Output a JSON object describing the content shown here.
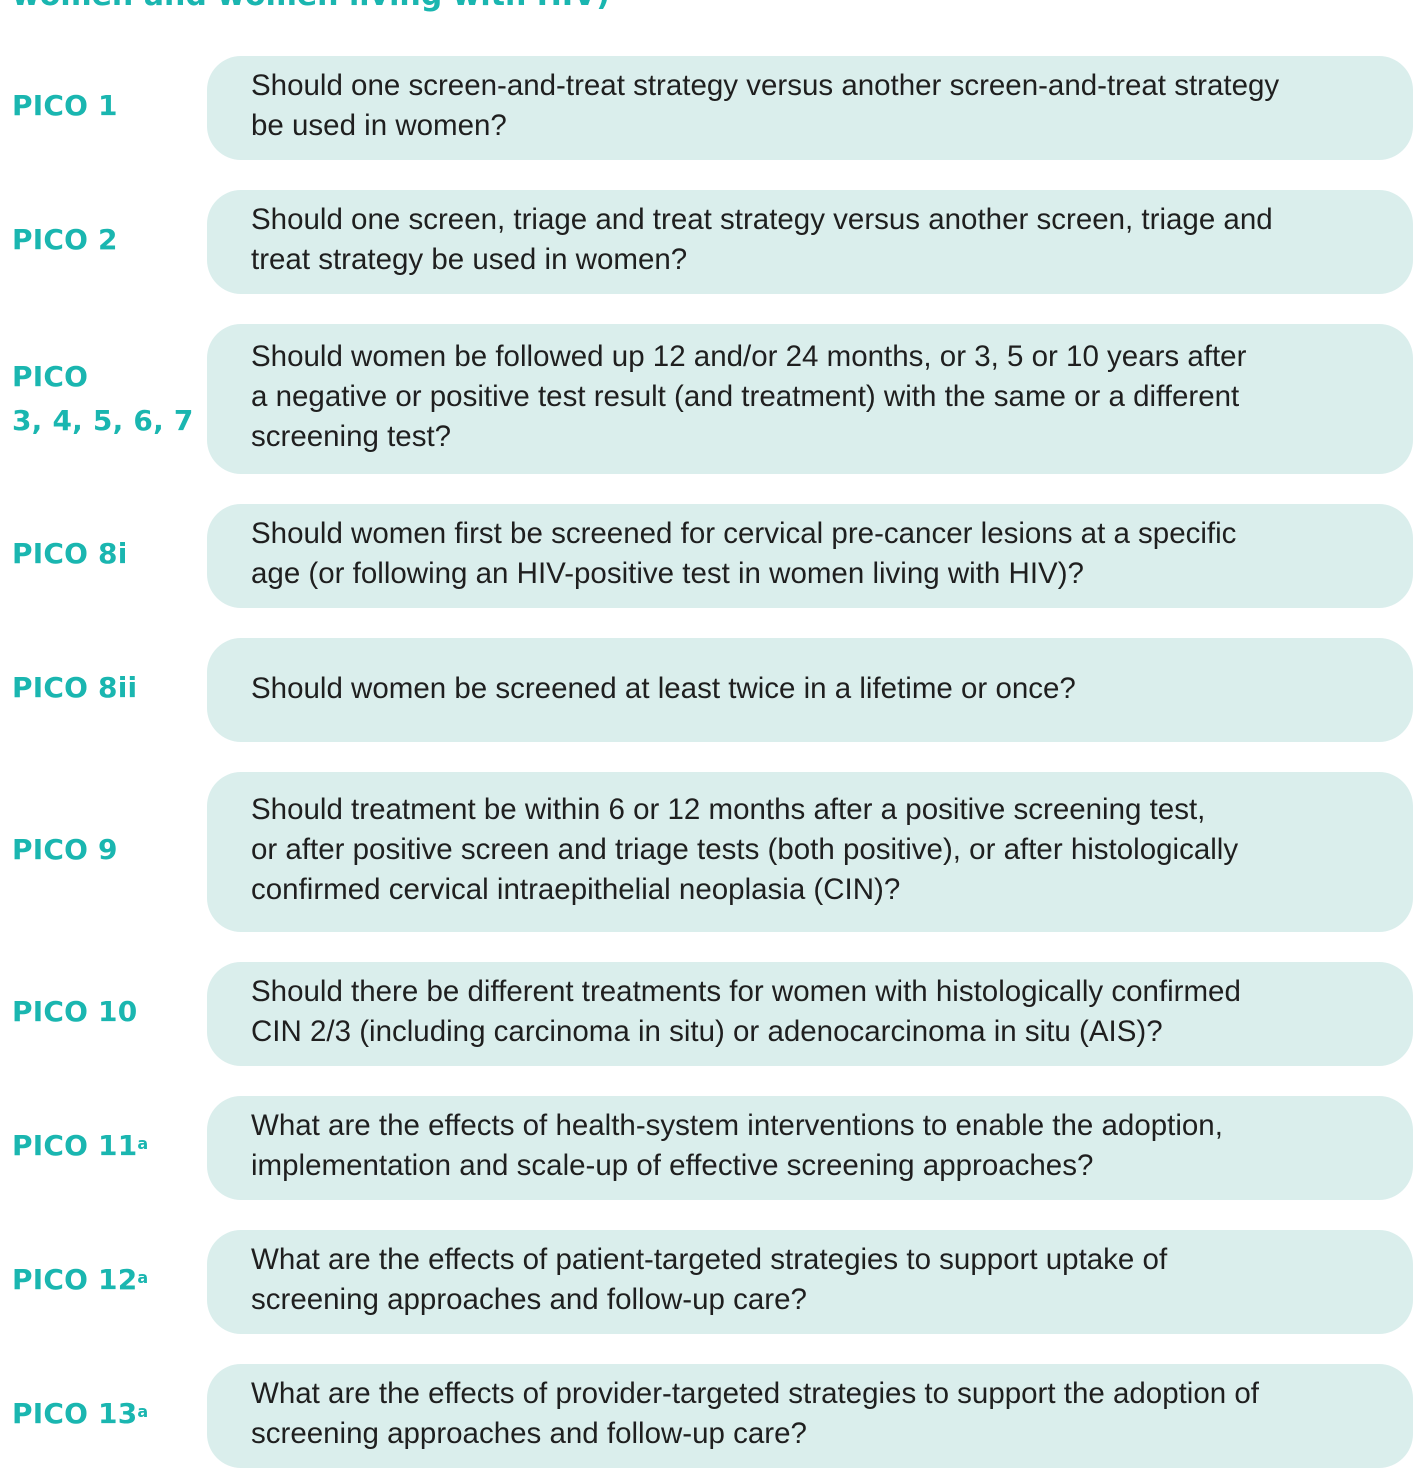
{
  "header": {
    "title": "women and women living with HIV)"
  },
  "colors": {
    "accent": "#1ab6b0",
    "bubble_bg": "#daeeec",
    "text": "#1f1f1f"
  },
  "picos": [
    {
      "label_line1": "PICO 1",
      "label_line2": "",
      "sup": "",
      "line1": "Should one screen-and-treat strategy versus another screen-and-treat strategy",
      "line2": "be used in women?",
      "line3": ""
    },
    {
      "label_line1": "PICO 2",
      "label_line2": "",
      "sup": "",
      "line1": "Should one screen, triage and treat strategy versus another screen, triage and",
      "line2": "treat strategy be used in women?",
      "line3": ""
    },
    {
      "label_line1": "PICO",
      "label_line2": "3, 4, 5, 6, 7",
      "sup": "",
      "line1": "Should women be followed up 12 and/or 24 months, or 3, 5 or 10 years after",
      "line2": "a negative or positive test result (and treatment) with the same or a different",
      "line3": "screening test?"
    },
    {
      "label_line1": "PICO 8i",
      "label_line2": "",
      "sup": "",
      "line1": "Should women first be screened for cervical pre-cancer lesions at a specific",
      "line2": "age (or following an HIV-positive test in women living with HIV)?",
      "line3": ""
    },
    {
      "label_line1": "PICO 8ii",
      "label_line2": "",
      "sup": "",
      "line1": "Should women be screened at least twice in a lifetime or once?",
      "line2": "",
      "line3": ""
    },
    {
      "label_line1": "PICO 9",
      "label_line2": "",
      "sup": "",
      "line1": "Should treatment be within 6 or 12 months after a positive screening test,",
      "line2": "or after positive screen and triage tests (both positive), or after histologically",
      "line3": "confirmed cervical intraepithelial neoplasia (CIN)?"
    },
    {
      "label_line1": "PICO 10",
      "label_line2": "",
      "sup": "",
      "line1": "Should there be different treatments for women with histologically confirmed",
      "line2": "CIN 2/3 (including carcinoma in situ) or adenocarcinoma in situ (AIS)?",
      "line3": ""
    },
    {
      "label_line1": "PICO 11",
      "label_line2": "",
      "sup": "a",
      "line1": "What are the effects of health-system interventions to enable the adoption,",
      "line2": "implementation and scale-up of effective screening approaches?",
      "line3": ""
    },
    {
      "label_line1": "PICO 12",
      "label_line2": "",
      "sup": "a",
      "line1": "What are the effects of patient-targeted strategies to support uptake of",
      "line2": "screening approaches and follow-up care?",
      "line3": ""
    },
    {
      "label_line1": "PICO 13",
      "label_line2": "",
      "sup": "a",
      "line1": "What are the effects of provider-targeted strategies to support the adoption of",
      "line2": "screening approaches and follow-up care?",
      "line3": ""
    }
  ]
}
